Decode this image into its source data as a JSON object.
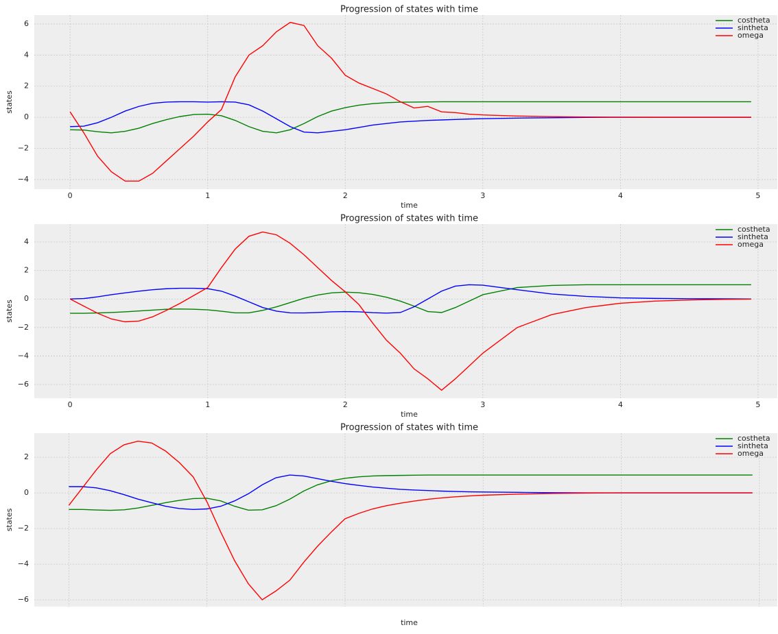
{
  "chart_data": [
    {
      "type": "line",
      "title": "Progression of states with time",
      "x_label": "time",
      "y_label": "states",
      "x": [
        0,
        0.1,
        0.2,
        0.3,
        0.4,
        0.5,
        0.6,
        0.7,
        0.8,
        0.9,
        1.0,
        1.1,
        1.2,
        1.3,
        1.4,
        1.5,
        1.6,
        1.7,
        1.8,
        1.9,
        2.0,
        2.1,
        2.2,
        2.3,
        2.4,
        2.5,
        2.6,
        2.7,
        2.8,
        2.9,
        3.0,
        3.25,
        3.5,
        3.75,
        4.0,
        4.25,
        4.5,
        4.75,
        4.95
      ],
      "series": [
        {
          "name": "costheta",
          "color": "#008000",
          "values": [
            -0.8,
            -0.82,
            -0.93,
            -1.0,
            -0.9,
            -0.7,
            -0.4,
            -0.15,
            0.05,
            0.18,
            0.2,
            0.1,
            -0.2,
            -0.6,
            -0.9,
            -1.0,
            -0.8,
            -0.4,
            0.05,
            0.4,
            0.62,
            0.78,
            0.88,
            0.94,
            0.97,
            0.98,
            0.99,
            1,
            1,
            1,
            1,
            1,
            1,
            1,
            1,
            1,
            1,
            1,
            1
          ]
        },
        {
          "name": "sintheta",
          "color": "#0000ff",
          "values": [
            -0.6,
            -0.57,
            -0.35,
            0.0,
            0.4,
            0.7,
            0.9,
            0.98,
            1.0,
            1.0,
            0.98,
            1.0,
            0.98,
            0.8,
            0.4,
            -0.1,
            -0.6,
            -0.95,
            -1.0,
            -0.9,
            -0.8,
            -0.65,
            -0.5,
            -0.4,
            -0.3,
            -0.25,
            -0.2,
            -0.17,
            -0.14,
            -0.11,
            -0.09,
            -0.05,
            -0.03,
            -0.01,
            0,
            0,
            0,
            0,
            0
          ]
        },
        {
          "name": "omega",
          "color": "#ff0000",
          "values": [
            0.35,
            -1.0,
            -2.5,
            -3.5,
            -4.1,
            -4.1,
            -3.6,
            -2.8,
            -2.0,
            -1.2,
            -0.3,
            0.5,
            2.6,
            4.0,
            4.6,
            5.5,
            6.1,
            5.9,
            4.6,
            3.8,
            2.7,
            2.2,
            1.85,
            1.5,
            1.0,
            0.6,
            0.7,
            0.35,
            0.3,
            0.2,
            0.15,
            0.08,
            0.04,
            0.02,
            0.01,
            0,
            0,
            0,
            0
          ]
        }
      ],
      "xlim": [
        -0.26,
        5.14
      ],
      "ylim": [
        -4.62,
        6.57
      ],
      "xticks": [
        0,
        1,
        2,
        3,
        4,
        5
      ],
      "yticks": [
        {
          "value": -4,
          "label": "−4"
        },
        {
          "value": -2,
          "label": "−2"
        },
        0,
        2,
        4,
        6
      ],
      "show_xtick_labels": true,
      "grid": true,
      "legend": "upper right"
    },
    {
      "type": "line",
      "title": "Progression of states with time",
      "x_label": "time",
      "y_label": "states",
      "x": [
        0,
        0.1,
        0.2,
        0.3,
        0.4,
        0.5,
        0.6,
        0.7,
        0.8,
        0.9,
        1.0,
        1.1,
        1.2,
        1.3,
        1.4,
        1.5,
        1.6,
        1.7,
        1.8,
        1.9,
        2.0,
        2.1,
        2.2,
        2.3,
        2.4,
        2.5,
        2.6,
        2.7,
        2.8,
        2.9,
        3.0,
        3.25,
        3.5,
        3.75,
        4.0,
        4.25,
        4.5,
        4.75,
        4.95
      ],
      "series": [
        {
          "name": "costheta",
          "color": "#008000",
          "values": [
            -1,
            -1,
            -0.98,
            -0.95,
            -0.9,
            -0.84,
            -0.78,
            -0.72,
            -0.7,
            -0.72,
            -0.76,
            -0.86,
            -0.97,
            -0.97,
            -0.8,
            -0.55,
            -0.25,
            0.05,
            0.28,
            0.43,
            0.48,
            0.44,
            0.32,
            0.12,
            -0.15,
            -0.5,
            -0.88,
            -0.95,
            -0.6,
            -0.15,
            0.3,
            0.8,
            0.95,
            1,
            1,
            1,
            1,
            1,
            1
          ]
        },
        {
          "name": "sintheta",
          "color": "#0000ff",
          "values": [
            0,
            0.03,
            0.15,
            0.3,
            0.43,
            0.55,
            0.65,
            0.72,
            0.75,
            0.75,
            0.72,
            0.55,
            0.2,
            -0.2,
            -0.6,
            -0.85,
            -0.97,
            -0.98,
            -0.95,
            -0.9,
            -0.88,
            -0.9,
            -0.96,
            -0.99,
            -0.95,
            -0.55,
            0.0,
            0.55,
            0.9,
            1.0,
            0.97,
            0.65,
            0.35,
            0.18,
            0.08,
            0.04,
            0.02,
            0.01,
            0
          ]
        },
        {
          "name": "omega",
          "color": "#ff0000",
          "values": [
            0,
            -0.5,
            -1.0,
            -1.4,
            -1.6,
            -1.55,
            -1.25,
            -0.8,
            -0.3,
            0.25,
            0.8,
            2.2,
            3.5,
            4.4,
            4.7,
            4.5,
            3.9,
            3.1,
            2.2,
            1.3,
            0.5,
            -0.4,
            -1.7,
            -2.9,
            -3.8,
            -4.9,
            -5.6,
            -6.4,
            -5.6,
            -4.7,
            -3.8,
            -2.0,
            -1.1,
            -0.6,
            -0.3,
            -0.15,
            -0.07,
            -0.03,
            -0.01
          ]
        }
      ],
      "xlim": [
        -0.26,
        5.14
      ],
      "ylim": [
        -6.96,
        5.25
      ],
      "xticks": [
        0,
        1,
        2,
        3,
        4,
        5
      ],
      "yticks": [
        {
          "value": -6,
          "label": "−6"
        },
        {
          "value": -4,
          "label": "−4"
        },
        {
          "value": -2,
          "label": "−2"
        },
        0,
        2,
        4
      ],
      "show_xtick_labels": true,
      "grid": true,
      "legend": "upper right"
    },
    {
      "type": "line",
      "title": "Progression of states with time",
      "x_label": "time",
      "y_label": "states",
      "x": [
        0,
        0.1,
        0.2,
        0.3,
        0.4,
        0.5,
        0.6,
        0.7,
        0.8,
        0.9,
        1.0,
        1.1,
        1.2,
        1.3,
        1.4,
        1.5,
        1.6,
        1.7,
        1.8,
        1.9,
        2.0,
        2.1,
        2.2,
        2.3,
        2.4,
        2.5,
        2.6,
        2.7,
        2.8,
        2.9,
        3.0,
        3.25,
        3.5,
        3.75,
        4.0,
        4.25,
        4.5,
        4.75,
        4.95
      ],
      "series": [
        {
          "name": "costheta",
          "color": "#008000",
          "values": [
            -0.93,
            -0.93,
            -0.96,
            -0.98,
            -0.95,
            -0.85,
            -0.7,
            -0.55,
            -0.42,
            -0.32,
            -0.3,
            -0.45,
            -0.75,
            -0.97,
            -0.95,
            -0.72,
            -0.35,
            0.1,
            0.45,
            0.68,
            0.82,
            0.9,
            0.95,
            0.97,
            0.98,
            0.99,
            1,
            1,
            1,
            1,
            1,
            1,
            1,
            1,
            1,
            1,
            1,
            1,
            1
          ]
        },
        {
          "name": "sintheta",
          "color": "#0000ff",
          "values": [
            0.35,
            0.35,
            0.28,
            0.12,
            -0.1,
            -0.35,
            -0.55,
            -0.75,
            -0.88,
            -0.93,
            -0.9,
            -0.75,
            -0.45,
            -0.05,
            0.45,
            0.85,
            1.0,
            0.95,
            0.8,
            0.65,
            0.52,
            0.42,
            0.33,
            0.26,
            0.2,
            0.16,
            0.13,
            0.1,
            0.08,
            0.06,
            0.05,
            0.03,
            0.01,
            0,
            0,
            0,
            0,
            0,
            0
          ]
        },
        {
          "name": "omega",
          "color": "#ff0000",
          "values": [
            -0.7,
            0.3,
            1.3,
            2.2,
            2.7,
            2.9,
            2.8,
            2.35,
            1.7,
            0.9,
            -0.5,
            -2.2,
            -3.8,
            -5.1,
            -6.0,
            -5.5,
            -4.9,
            -3.9,
            -3.0,
            -2.2,
            -1.45,
            -1.15,
            -0.9,
            -0.72,
            -0.58,
            -0.46,
            -0.36,
            -0.28,
            -0.22,
            -0.17,
            -0.13,
            -0.07,
            -0.03,
            -0.01,
            0,
            0,
            0,
            0,
            0
          ]
        }
      ],
      "xlim": [
        -0.25,
        5.13
      ],
      "ylim": [
        -6.38,
        3.35
      ],
      "xticks": [
        0,
        1,
        2,
        3,
        4,
        5
      ],
      "yticks": [
        {
          "value": -6,
          "label": "−6"
        },
        {
          "value": -4,
          "label": "−4"
        },
        {
          "value": -2,
          "label": "−2"
        },
        0,
        2
      ],
      "show_xtick_labels": false,
      "grid": true,
      "legend": "upper right"
    }
  ]
}
